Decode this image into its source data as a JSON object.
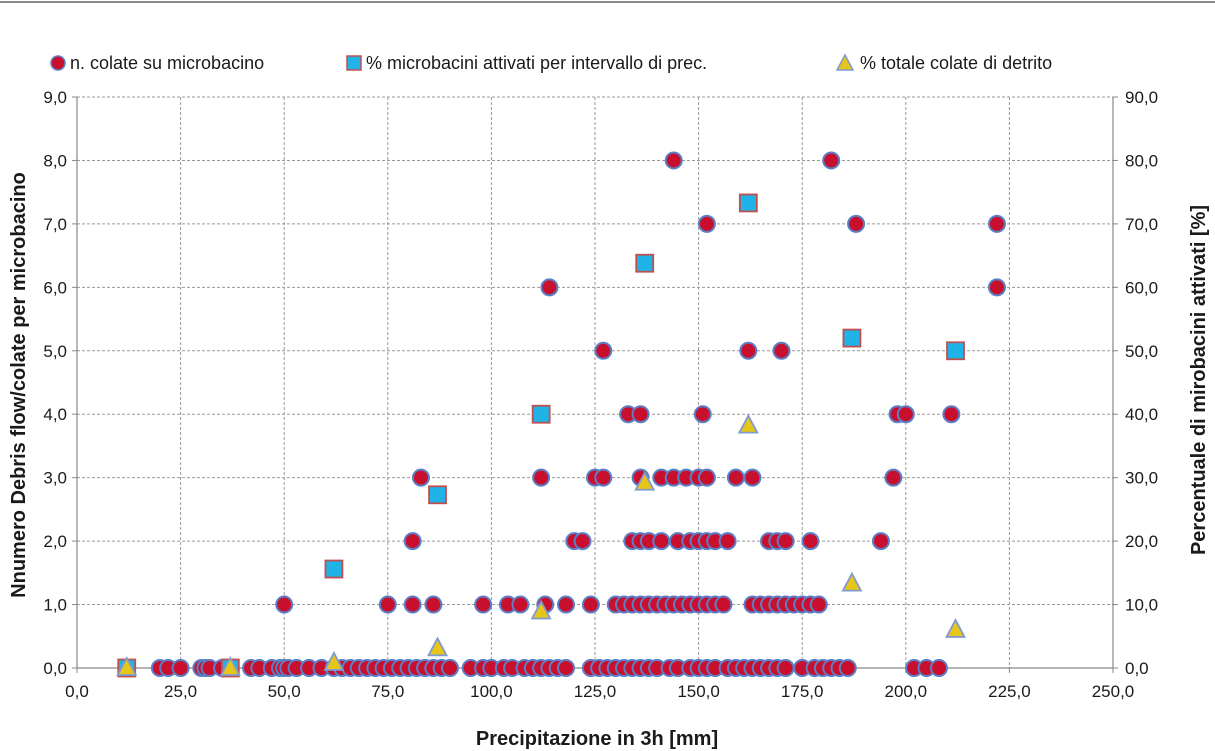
{
  "chart_data": {
    "type": "scatter",
    "xlabel": "Precipitazione in 3h [mm]",
    "ylabel": "Nnumero Debris flow/colate per microbacino",
    "y2label": "Percentuale di mirobacini attivati [%]",
    "xlim": [
      0,
      250
    ],
    "ylim": [
      0,
      9
    ],
    "y2lim": [
      0,
      90
    ],
    "x_ticks": [
      "0,0",
      "25,0",
      "50,0",
      "75,0",
      "100,0",
      "125,0",
      "150,0",
      "175,0",
      "200,0",
      "225,0",
      "250,0"
    ],
    "y_ticks": [
      "0,0",
      "1,0",
      "2,0",
      "3,0",
      "4,0",
      "5,0",
      "6,0",
      "7,0",
      "8,0",
      "9,0"
    ],
    "y2_ticks": [
      "0,0",
      "10,0",
      "20,0",
      "30,0",
      "40,0",
      "50,0",
      "60,0",
      "70,0",
      "80,0",
      "90,0"
    ],
    "grid": true,
    "legend_position": "top",
    "series": [
      {
        "name": "n. colate su microbacino",
        "marker": "circle",
        "axis": "left",
        "color": "#c8102e",
        "edge_color": "#5b7fc7",
        "points": [
          [
            20,
            0
          ],
          [
            22,
            0
          ],
          [
            25,
            0
          ],
          [
            30,
            0
          ],
          [
            31,
            0
          ],
          [
            32,
            0
          ],
          [
            35,
            0
          ],
          [
            37,
            0
          ],
          [
            42,
            0
          ],
          [
            44,
            0
          ],
          [
            47,
            0
          ],
          [
            49,
            0
          ],
          [
            50,
            0
          ],
          [
            51,
            0
          ],
          [
            53,
            0
          ],
          [
            56,
            0
          ],
          [
            59,
            0
          ],
          [
            62,
            0
          ],
          [
            64,
            0
          ],
          [
            66,
            0
          ],
          [
            68,
            0
          ],
          [
            70,
            0
          ],
          [
            72,
            0
          ],
          [
            74,
            0
          ],
          [
            76,
            0
          ],
          [
            78,
            0
          ],
          [
            80,
            0
          ],
          [
            82,
            0
          ],
          [
            84,
            0
          ],
          [
            86,
            0
          ],
          [
            88,
            0
          ],
          [
            90,
            0
          ],
          [
            95,
            0
          ],
          [
            98,
            0
          ],
          [
            100,
            0
          ],
          [
            103,
            0
          ],
          [
            105,
            0
          ],
          [
            108,
            0
          ],
          [
            110,
            0
          ],
          [
            112,
            0
          ],
          [
            114,
            0
          ],
          [
            116,
            0
          ],
          [
            118,
            0
          ],
          [
            124,
            0
          ],
          [
            126,
            0
          ],
          [
            128,
            0
          ],
          [
            130,
            0
          ],
          [
            132,
            0
          ],
          [
            134,
            0
          ],
          [
            136,
            0
          ],
          [
            138,
            0
          ],
          [
            140,
            0
          ],
          [
            143,
            0
          ],
          [
            145,
            0
          ],
          [
            148,
            0
          ],
          [
            150,
            0
          ],
          [
            152,
            0
          ],
          [
            154,
            0
          ],
          [
            157,
            0
          ],
          [
            159,
            0
          ],
          [
            161,
            0
          ],
          [
            163,
            0
          ],
          [
            165,
            0
          ],
          [
            167,
            0
          ],
          [
            169,
            0
          ],
          [
            171,
            0
          ],
          [
            175,
            0
          ],
          [
            178,
            0
          ],
          [
            180,
            0
          ],
          [
            182,
            0
          ],
          [
            184,
            0
          ],
          [
            186,
            0
          ],
          [
            202,
            0
          ],
          [
            205,
            0
          ],
          [
            208,
            0
          ],
          [
            50,
            1
          ],
          [
            75,
            1
          ],
          [
            81,
            1
          ],
          [
            86,
            1
          ],
          [
            98,
            1
          ],
          [
            104,
            1
          ],
          [
            107,
            1
          ],
          [
            113,
            1
          ],
          [
            118,
            1
          ],
          [
            124,
            1
          ],
          [
            130,
            1
          ],
          [
            132,
            1
          ],
          [
            134,
            1
          ],
          [
            136,
            1
          ],
          [
            138,
            1
          ],
          [
            140,
            1
          ],
          [
            142,
            1
          ],
          [
            144,
            1
          ],
          [
            146,
            1
          ],
          [
            148,
            1
          ],
          [
            150,
            1
          ],
          [
            152,
            1
          ],
          [
            154,
            1
          ],
          [
            156,
            1
          ],
          [
            163,
            1
          ],
          [
            165,
            1
          ],
          [
            167,
            1
          ],
          [
            169,
            1
          ],
          [
            171,
            1
          ],
          [
            173,
            1
          ],
          [
            175,
            1
          ],
          [
            177,
            1
          ],
          [
            179,
            1
          ],
          [
            81,
            2
          ],
          [
            120,
            2
          ],
          [
            122,
            2
          ],
          [
            134,
            2
          ],
          [
            136,
            2
          ],
          [
            138,
            2
          ],
          [
            141,
            2
          ],
          [
            145,
            2
          ],
          [
            148,
            2
          ],
          [
            150,
            2
          ],
          [
            152,
            2
          ],
          [
            154,
            2
          ],
          [
            157,
            2
          ],
          [
            167,
            2
          ],
          [
            169,
            2
          ],
          [
            171,
            2
          ],
          [
            177,
            2
          ],
          [
            194,
            2
          ],
          [
            83,
            3
          ],
          [
            112,
            3
          ],
          [
            125,
            3
          ],
          [
            127,
            3
          ],
          [
            136,
            3
          ],
          [
            141,
            3
          ],
          [
            144,
            3
          ],
          [
            147,
            3
          ],
          [
            150,
            3
          ],
          [
            152,
            3
          ],
          [
            159,
            3
          ],
          [
            163,
            3
          ],
          [
            197,
            3
          ],
          [
            133,
            4
          ],
          [
            136,
            4
          ],
          [
            151,
            4
          ],
          [
            198,
            4
          ],
          [
            200,
            4
          ],
          [
            211,
            4
          ],
          [
            127,
            5
          ],
          [
            162,
            5
          ],
          [
            170,
            5
          ],
          [
            114,
            6
          ],
          [
            222,
            6
          ],
          [
            152,
            7
          ],
          [
            188,
            7
          ],
          [
            222,
            7
          ],
          [
            144,
            8
          ],
          [
            182,
            8
          ]
        ]
      },
      {
        "name": "% microbacini attivati per intervallo di prec.",
        "marker": "square",
        "axis": "right",
        "color": "#1fb3e8",
        "edge_color": "#c0504d",
        "points": [
          [
            12,
            0
          ],
          [
            37,
            0
          ],
          [
            62,
            15.6
          ],
          [
            87,
            27.3
          ],
          [
            112,
            40
          ],
          [
            137,
            63.8
          ],
          [
            162,
            73.3
          ],
          [
            187,
            52
          ],
          [
            212,
            50
          ]
        ]
      },
      {
        "name": "% totale colate di detrito",
        "marker": "triangle",
        "axis": "right",
        "color": "#e6c619",
        "edge_color": "#7f9bd0",
        "points": [
          [
            12,
            0
          ],
          [
            37,
            0
          ],
          [
            62,
            0.8
          ],
          [
            87,
            3.1
          ],
          [
            112,
            8.9
          ],
          [
            137,
            29.2
          ],
          [
            162,
            38.2
          ],
          [
            187,
            13.3
          ],
          [
            212,
            6
          ]
        ]
      }
    ]
  }
}
